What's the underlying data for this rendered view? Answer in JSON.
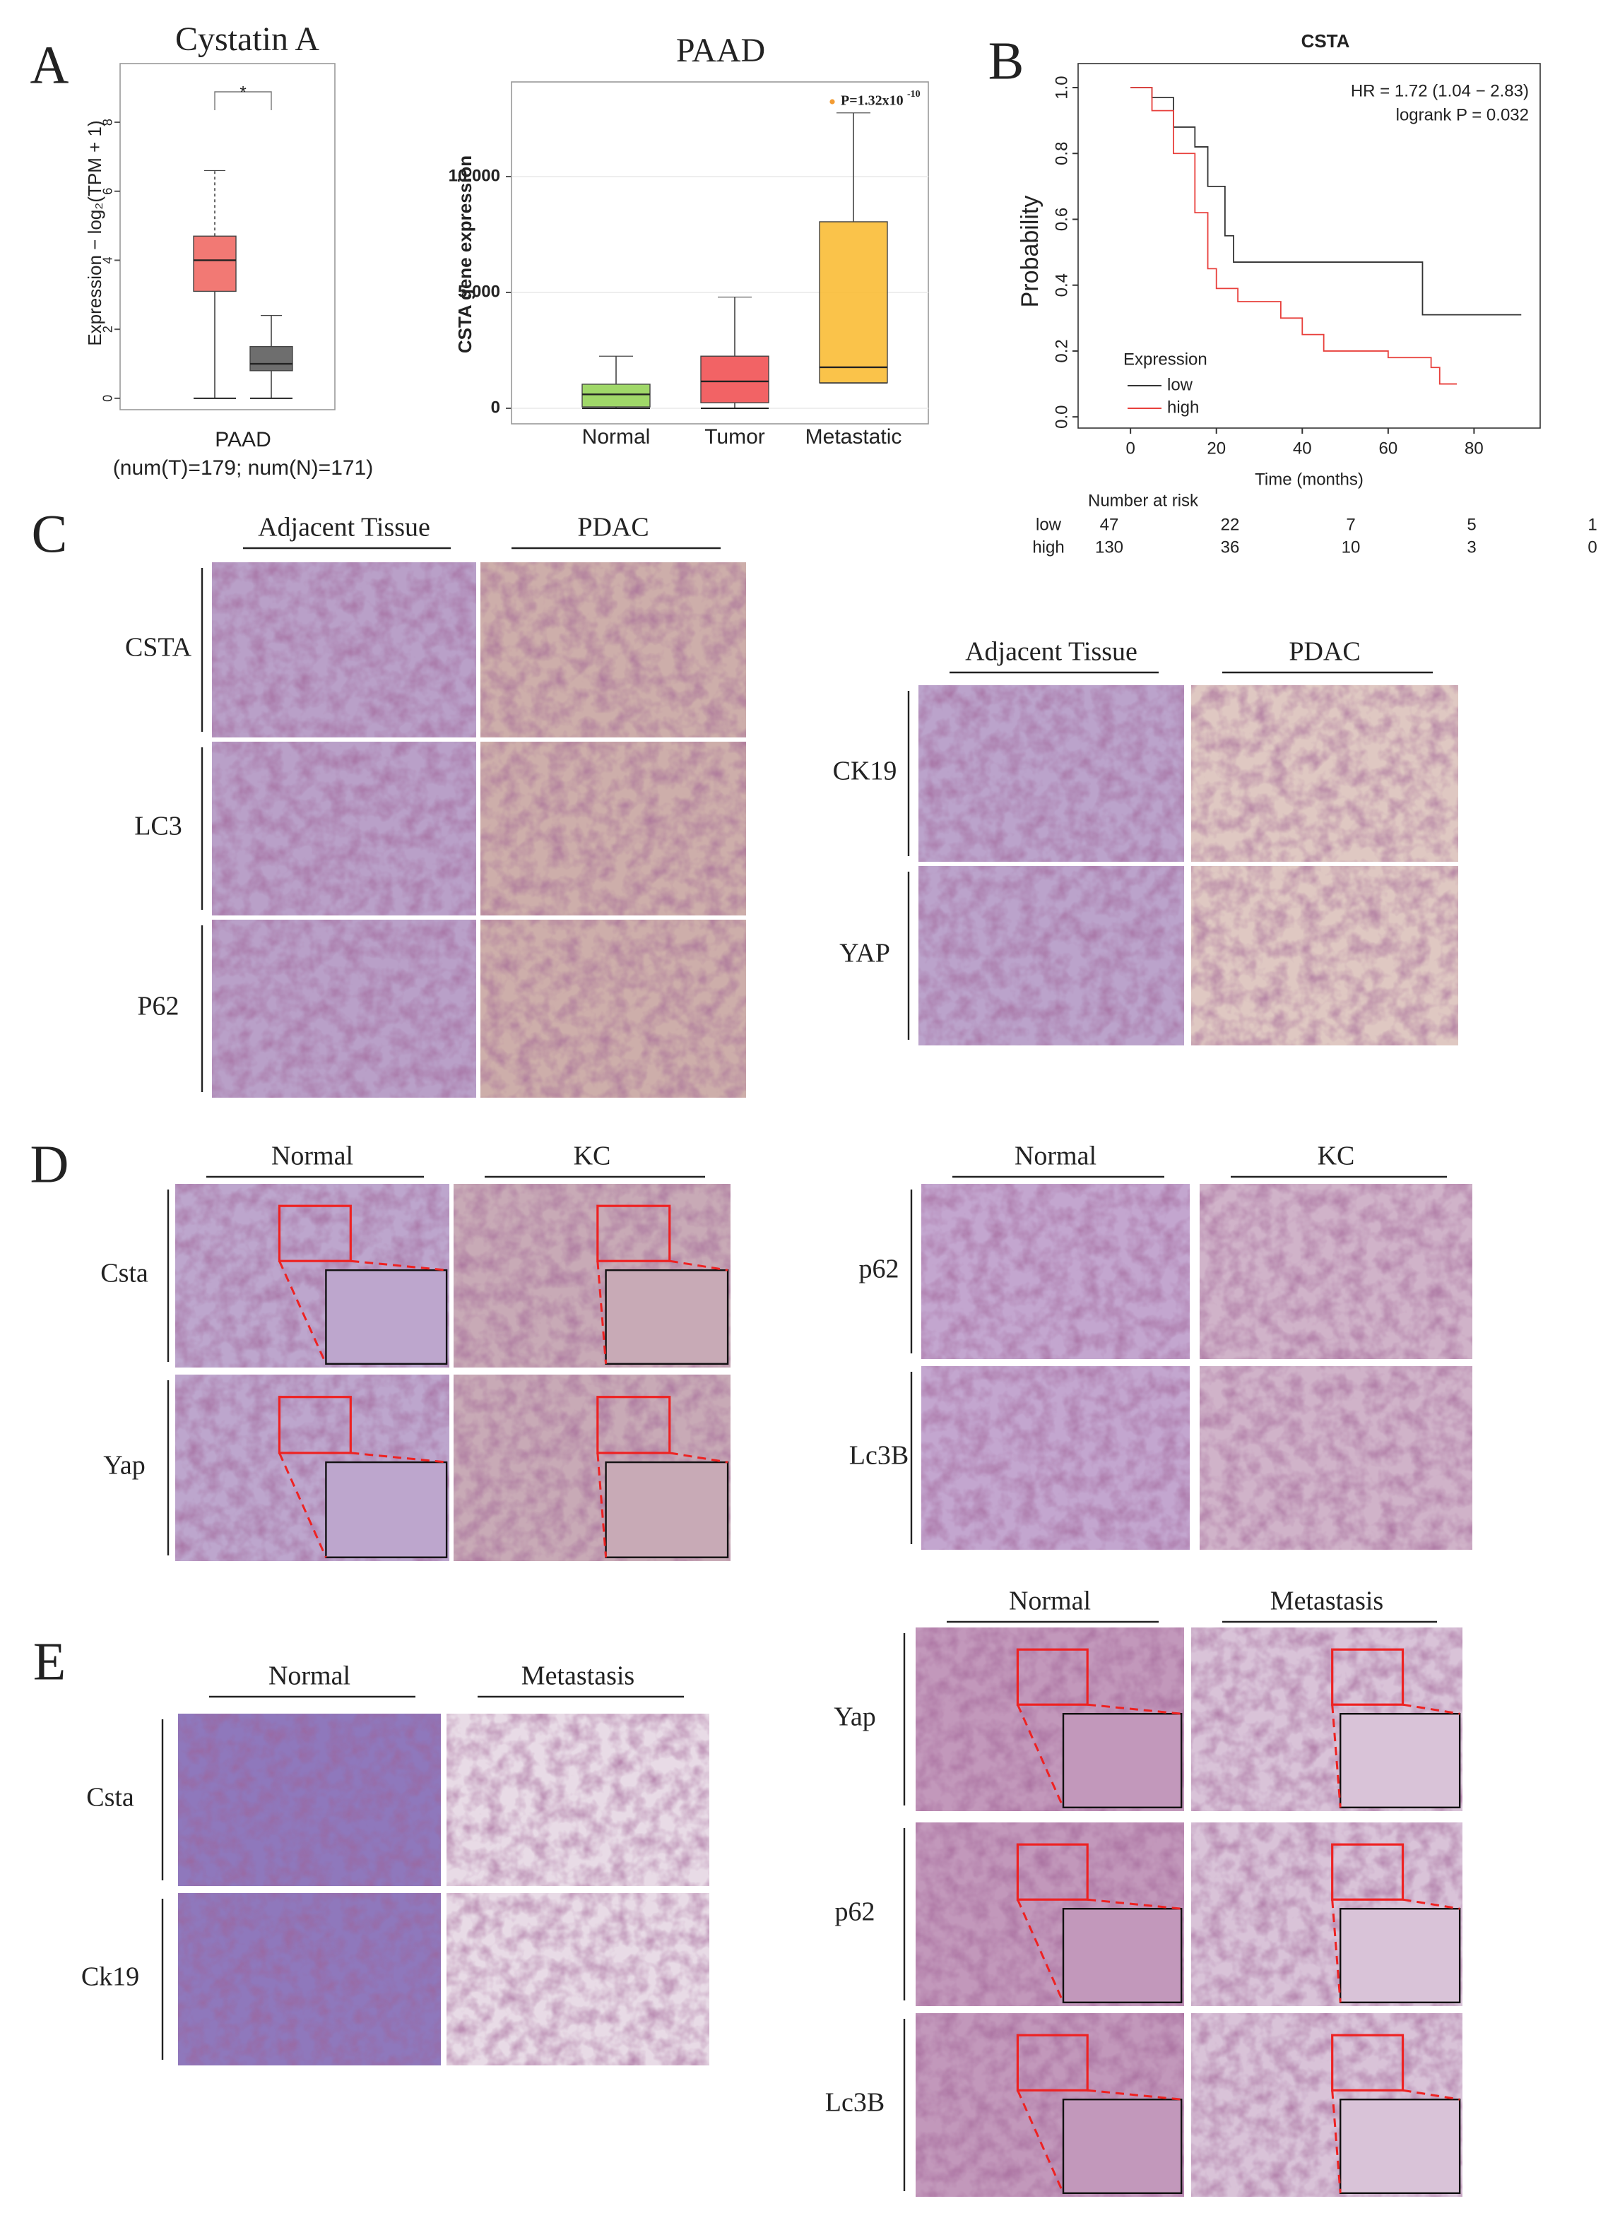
{
  "panel_letters": [
    "A",
    "B",
    "C",
    "D",
    "E"
  ],
  "chart_data": [
    {
      "type": "box",
      "title": "Cystatin A",
      "ylabel": "Expression − log₂(TPM + 1)",
      "categories": [
        "PAAD"
      ],
      "category_note": "(num(T)=179; num(N)=171)",
      "significance": "*",
      "boxes": [
        {
          "color": "#f0625c",
          "whislo": 0,
          "q1": 3.1,
          "med": 4.0,
          "q3": 4.7,
          "whishi": 6.6
        },
        {
          "color": "#555555",
          "whislo": 0,
          "q1": 0.8,
          "med": 1.0,
          "q3": 1.5,
          "whishi": 2.4
        }
      ],
      "ylim": [
        -0.33,
        9.7
      ],
      "yticks": [
        0,
        2,
        4,
        6,
        8
      ]
    },
    {
      "type": "box",
      "title": "PAAD",
      "ylabel": "CSTA gene expression",
      "categories": [
        "Normal",
        "Tumor",
        "Metastatic"
      ],
      "annotation": {
        "text": "P=1.32x10",
        "sup": "-10"
      },
      "boxes": [
        {
          "color": "#8fd14f",
          "whislo": 0,
          "q1": 60,
          "med": 600,
          "q3": 1040,
          "whishi": 2250
        },
        {
          "color": "#f0484a",
          "whislo": 0,
          "q1": 240,
          "med": 1160,
          "q3": 2250,
          "whishi": 4800
        },
        {
          "color": "#f9b92a",
          "whislo": 1100,
          "q1": 1100,
          "med": 1770,
          "q3": 8050,
          "whishi": 12750
        }
      ],
      "ylim": [
        -670,
        14085
      ],
      "yticks": [
        0,
        {
          "value": 5000,
          "label": "5.000"
        },
        {
          "value": 10000,
          "label": "10.000"
        }
      ],
      "grid": true
    },
    {
      "type": "line",
      "drawstyle": "steps-post",
      "title": "CSTA",
      "ylabel": "Probability",
      "xlabel": "Time (months)",
      "annotations": [
        "HR = 1.72 (1.04 − 2.83)",
        "logrank P = 0.032"
      ],
      "legend_title": "Expression",
      "series": [
        {
          "name": "low",
          "color": "#333333",
          "x": [
            0,
            5,
            10,
            15,
            18,
            22,
            24,
            67,
            68,
            91
          ],
          "values": [
            1,
            0.97,
            0.88,
            0.82,
            0.7,
            0.55,
            0.47,
            0.47,
            0.31,
            0.31
          ]
        },
        {
          "name": "high",
          "color": "#e8403c",
          "x": [
            0,
            5,
            10,
            15,
            18,
            20,
            25,
            35,
            40,
            45,
            60,
            70,
            72,
            76
          ],
          "values": [
            1,
            0.93,
            0.8,
            0.62,
            0.45,
            0.39,
            0.35,
            0.3,
            0.25,
            0.2,
            0.18,
            0.15,
            0.1,
            0.1
          ]
        }
      ],
      "xlim": [
        -12.2,
        95.4
      ],
      "xticks": [
        0,
        20,
        40,
        60,
        80
      ],
      "ylim": [
        -0.034,
        1.073
      ],
      "yticks": [
        {
          "value": 0,
          "label": "0.0"
        },
        0.2,
        0.4,
        0.6,
        0.8,
        {
          "value": 1,
          "label": "1.0"
        }
      ]
    }
  ],
  "risk_table": {
    "title": "Number at risk",
    "rows": [
      {
        "name": "low",
        "values": [
          47,
          22,
          7,
          5,
          1
        ]
      },
      {
        "name": "high",
        "values": [
          130,
          36,
          10,
          3,
          0
        ]
      }
    ]
  },
  "image_grids": [
    {
      "columns": [
        "Adjacent Tissue",
        "PDAC"
      ],
      "rows": [
        "CSTA",
        "LC3",
        "P62"
      ]
    },
    {
      "columns": [
        "Adjacent Tissue",
        "PDAC"
      ],
      "rows": [
        "CK19",
        "YAP"
      ]
    },
    {
      "columns": [
        "Normal",
        "KC"
      ],
      "rows": [
        "Csta",
        "Yap"
      ]
    },
    {
      "columns": [
        "Normal",
        "KC"
      ],
      "rows": [
        "p62",
        "Lc3B"
      ]
    },
    {
      "columns": [
        "Normal",
        "Metastasis"
      ],
      "rows": [
        "Csta",
        "Ck19"
      ]
    },
    {
      "columns": [
        "Normal",
        "Metastasis"
      ],
      "rows": [
        "Yap",
        "p62",
        "Lc3B"
      ]
    }
  ]
}
